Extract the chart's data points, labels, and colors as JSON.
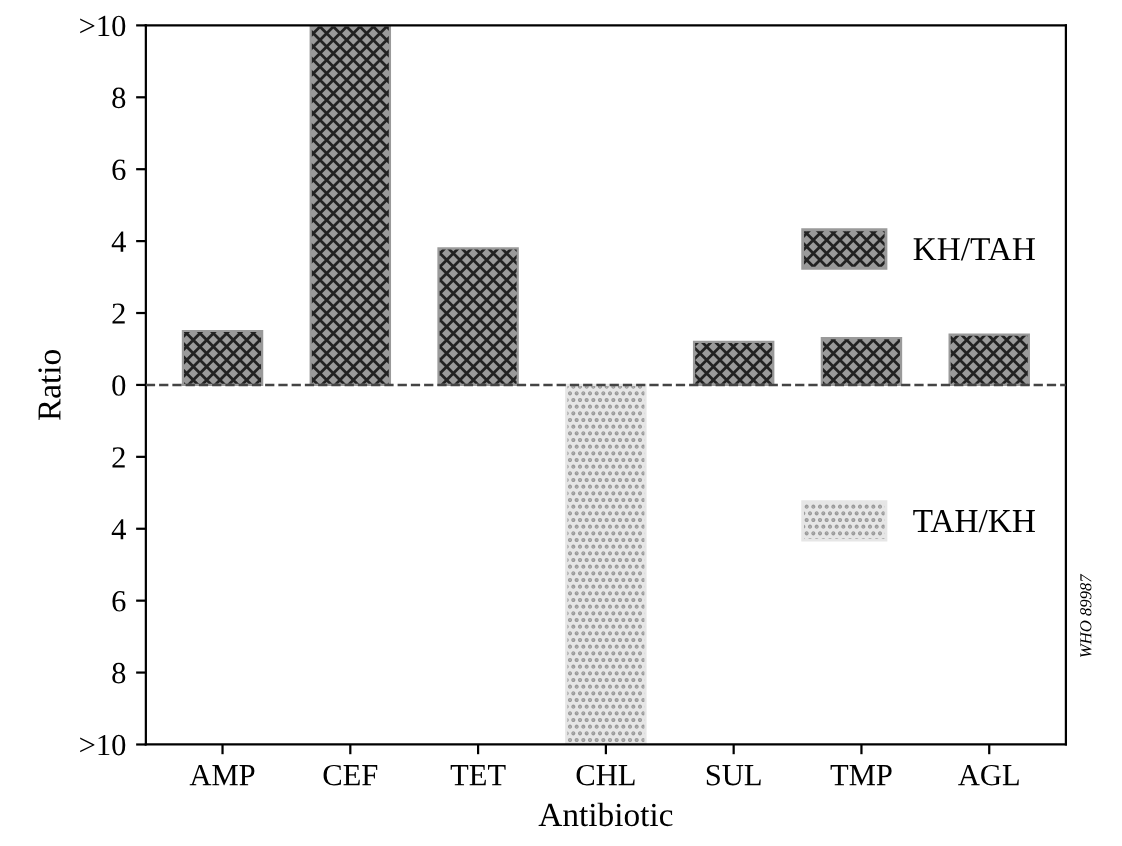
{
  "chart_data": {
    "type": "bar",
    "xlabel": "Antibiotic",
    "ylabel": "Ratio",
    "categories": [
      "AMP",
      "CEF",
      "TET",
      "CHL",
      "SUL",
      "TMP",
      "AGL"
    ],
    "series": [
      {
        "name": "KH/TAH",
        "color": "#9a9a9a",
        "values": [
          1.5,
          10,
          3.8,
          null,
          1.2,
          1.3,
          1.4
        ]
      },
      {
        "name": "TAH/KH",
        "color": "#e6e6e6",
        "values": [
          null,
          null,
          null,
          -10,
          null,
          null,
          null
        ]
      }
    ],
    "ylim": [
      -10,
      10
    ],
    "yticks": [
      {
        "value": -10,
        "label": ">10"
      },
      {
        "value": -8,
        "label": "8"
      },
      {
        "value": -6,
        "label": "6"
      },
      {
        "value": -4,
        "label": "4"
      },
      {
        "value": -2,
        "label": "2"
      },
      0,
      2,
      4,
      6,
      8,
      {
        "value": 10,
        "label": ">10"
      }
    ],
    "ref_lines": [
      {
        "axis": "y",
        "value": 0,
        "line_style": "dashed",
        "color": "#444444"
      }
    ],
    "annotations": [
      "WHO 89987"
    ],
    "legend": "right",
    "grid": false
  }
}
